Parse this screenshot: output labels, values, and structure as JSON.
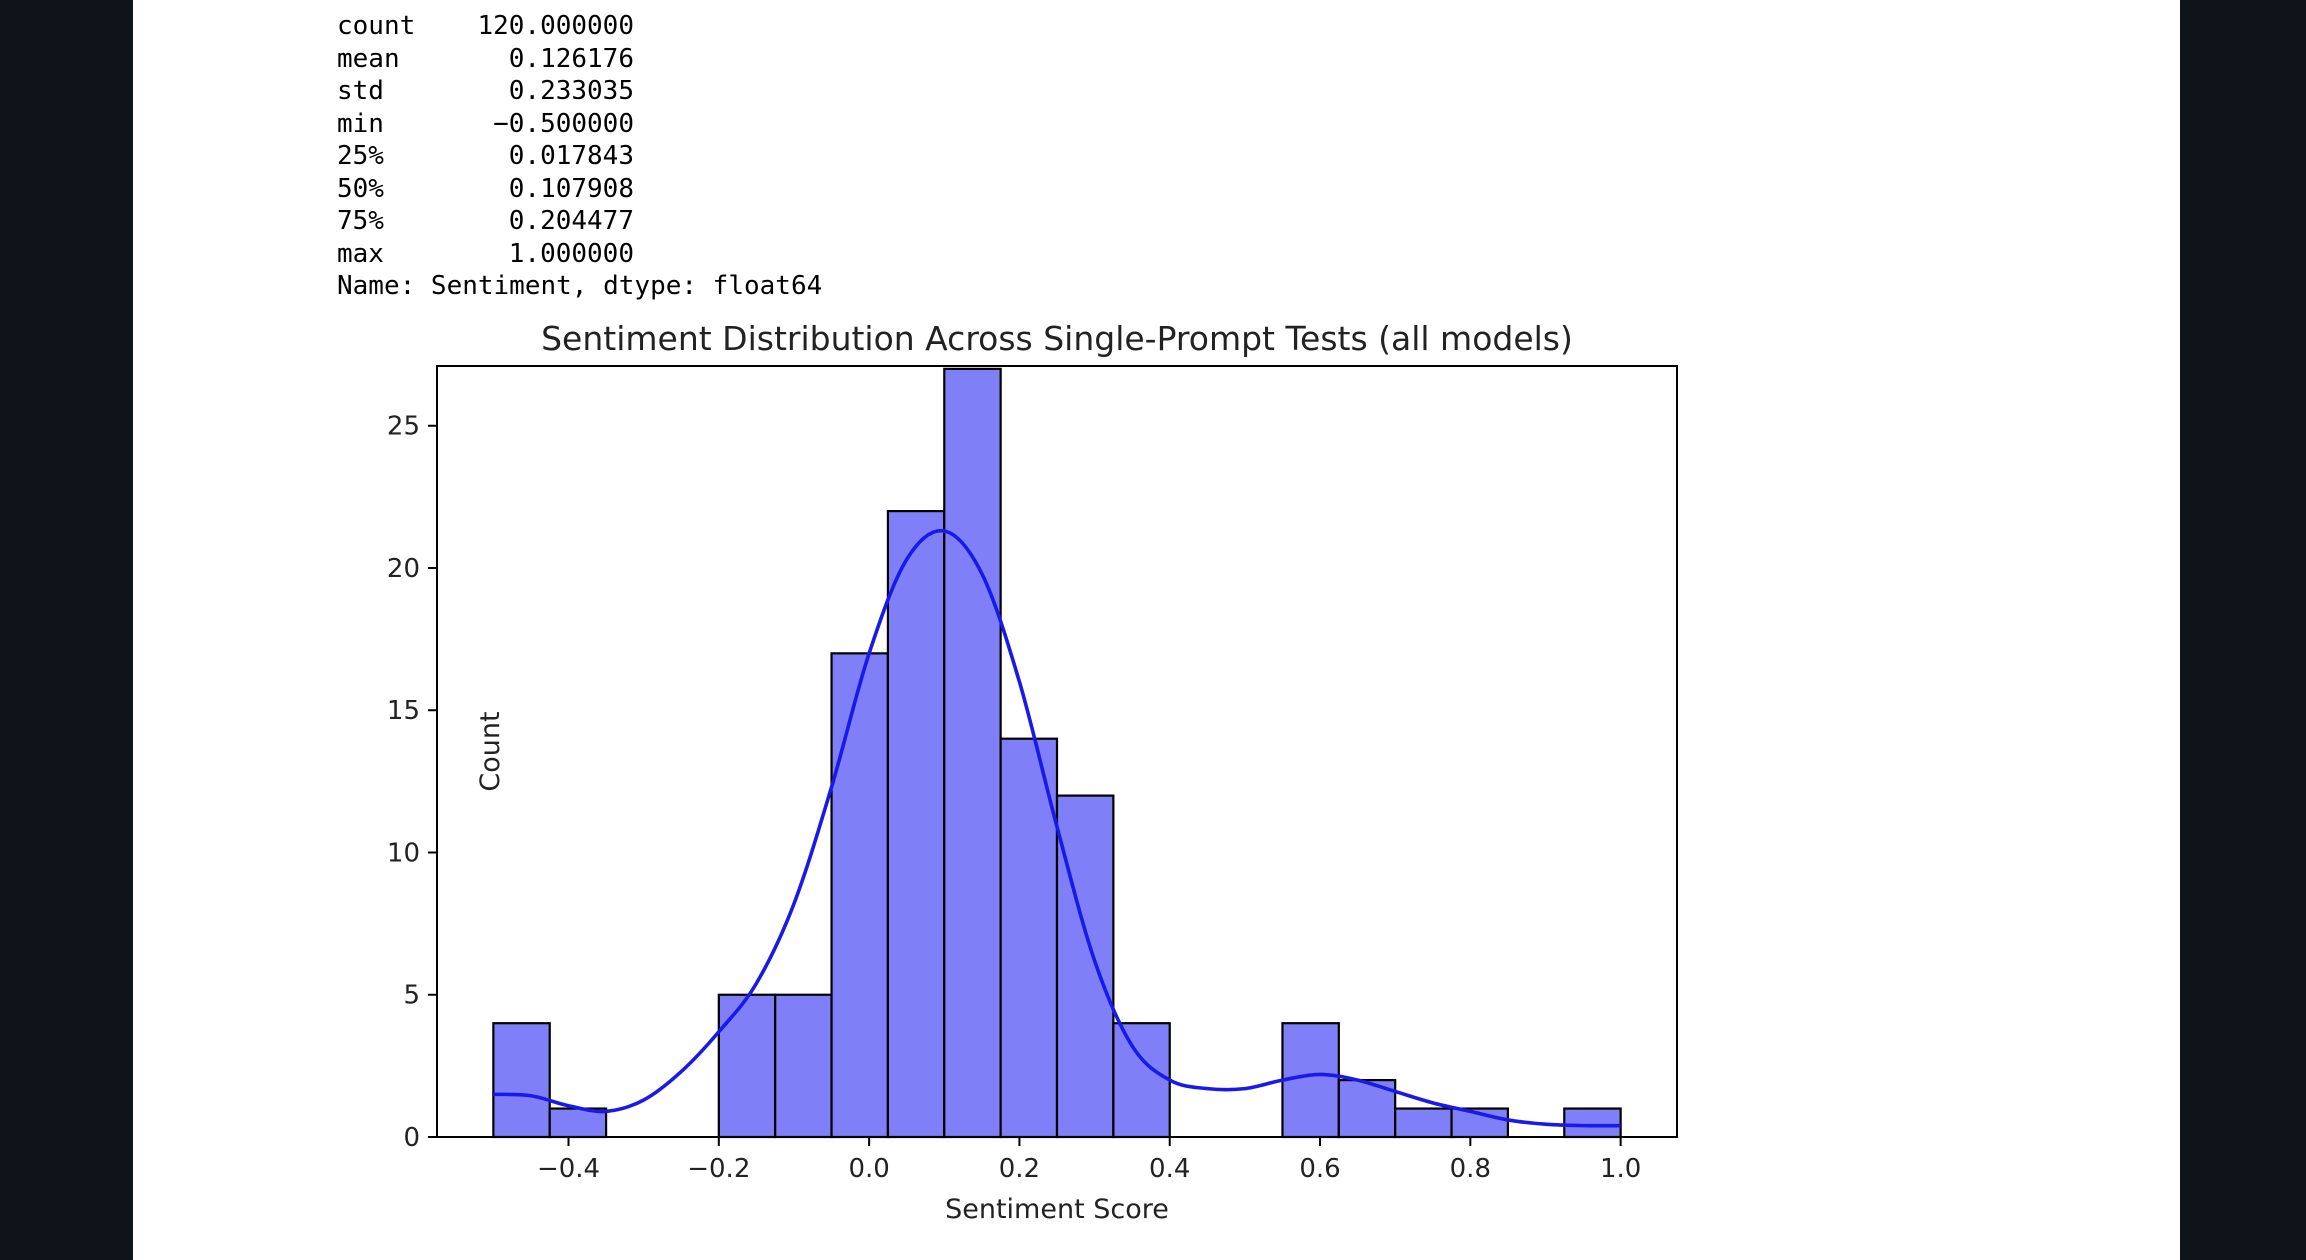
{
  "output": {
    "stats": [
      {
        "key": "count",
        "value": "120.000000"
      },
      {
        "key": "mean",
        "value": "0.126176"
      },
      {
        "key": "std",
        "value": "0.233035"
      },
      {
        "key": "min",
        "value": "-0.500000"
      },
      {
        "key": "25%",
        "value": "0.017843"
      },
      {
        "key": "50%",
        "value": "0.107908"
      },
      {
        "key": "75%",
        "value": "0.204477"
      },
      {
        "key": "max",
        "value": "1.000000"
      }
    ],
    "footer": "Name: Sentiment, dtype: float64"
  },
  "chart_data": {
    "type": "bar",
    "title": "Sentiment Distribution Across Single-Prompt Tests (all models)",
    "xlabel": "Sentiment Score",
    "ylabel": "Count",
    "xlim": [
      -0.575,
      1.075
    ],
    "ylim": [
      0,
      27.1
    ],
    "xticks": [
      -0.4,
      -0.2,
      0.0,
      0.2,
      0.4,
      0.6,
      0.8,
      1.0
    ],
    "xtick_labels": [
      "−0.4",
      "−0.2",
      "0.0",
      "0.2",
      "0.4",
      "0.6",
      "0.8",
      "1.0"
    ],
    "yticks": [
      0,
      5,
      10,
      15,
      20,
      25
    ],
    "ytick_labels": [
      "0",
      "5",
      "10",
      "15",
      "20",
      "25"
    ],
    "bin_start": -0.5,
    "bin_width": 0.075,
    "counts": [
      4,
      1,
      0,
      0,
      5,
      5,
      17,
      22,
      27,
      14,
      12,
      4,
      0,
      0,
      4,
      2,
      1,
      1,
      0,
      1
    ],
    "bar_color": "#7f7ff8",
    "bar_edge_color": "#000000",
    "kde": {
      "color": "#1a1ae8",
      "x": [
        -0.5,
        -0.45,
        -0.4,
        -0.35,
        -0.3,
        -0.25,
        -0.2,
        -0.15,
        -0.1,
        -0.05,
        0.0,
        0.05,
        0.1,
        0.15,
        0.2,
        0.25,
        0.3,
        0.35,
        0.4,
        0.45,
        0.5,
        0.55,
        0.6,
        0.65,
        0.7,
        0.75,
        0.8,
        0.85,
        0.9,
        0.95,
        1.0
      ],
      "y": [
        1.5,
        1.45,
        1.1,
        0.9,
        1.3,
        2.3,
        3.7,
        5.4,
        8.2,
        12.3,
        17.0,
        20.3,
        21.3,
        19.8,
        16.0,
        10.9,
        6.2,
        3.2,
        2.0,
        1.7,
        1.7,
        2.0,
        2.2,
        2.0,
        1.6,
        1.2,
        0.9,
        0.6,
        0.45,
        0.4,
        0.4
      ]
    }
  }
}
